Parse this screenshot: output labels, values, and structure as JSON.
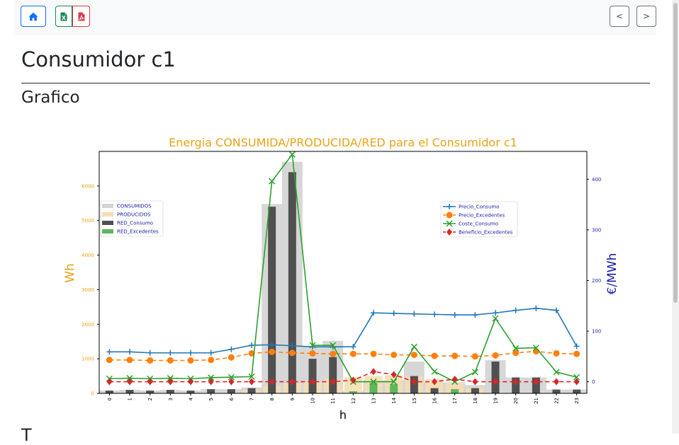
{
  "toolbar": {
    "home_icon": "home-icon",
    "excel_icon": "file-excel-icon",
    "pdf_icon": "file-pdf-icon",
    "prev_label": "<",
    "next_label": ">",
    "accent_home": "#0d6efd",
    "accent_excel": "#198754",
    "accent_pdf": "#dc3545"
  },
  "page": {
    "title": "Consumidor c1",
    "section": "Grafico",
    "next_heading_fragment": "T"
  },
  "chart_data": {
    "type": "bar",
    "title": "Energia CONSUMIDA/PRODUCIDA/RED para el Consumidor c1",
    "xlabel": "h",
    "ylabel": "Wh",
    "ylabel_right": "€/MWh",
    "categories": [
      "0",
      "1",
      "2",
      "3",
      "4",
      "5",
      "6",
      "7",
      "8",
      "9",
      "10",
      "11",
      "12",
      "13",
      "14",
      "15",
      "16",
      "17",
      "18",
      "19",
      "20",
      "21",
      "22",
      "23"
    ],
    "ylim": [
      0,
      7000
    ],
    "yticks": [
      0,
      1000,
      2000,
      3000,
      4000,
      5000,
      6000
    ],
    "ylim_right": [
      -23,
      455
    ],
    "yticks_right": [
      0,
      100,
      200,
      300,
      400
    ],
    "grid": false,
    "bar_series": [
      {
        "name": "CONSUMIDOS",
        "color": "#d3d3d3",
        "values": [
          80,
          100,
          80,
          100,
          80,
          120,
          120,
          170,
          5480,
          6700,
          1350,
          1520,
          60,
          380,
          380,
          920,
          320,
          320,
          240,
          960,
          460,
          460,
          110,
          110
        ]
      },
      {
        "name": "PRODUCIDOS",
        "color": "#f5deb3",
        "values": [
          0,
          0,
          0,
          0,
          0,
          0,
          20,
          90,
          220,
          300,
          350,
          420,
          470,
          500,
          520,
          500,
          420,
          300,
          150,
          40,
          0,
          0,
          0,
          0
        ]
      },
      {
        "name": "RED_Consumo",
        "color": "#505050",
        "values": [
          80,
          100,
          80,
          100,
          80,
          120,
          120,
          150,
          5400,
          6400,
          1000,
          1050,
          0,
          0,
          0,
          500,
          150,
          0,
          150,
          920,
          460,
          460,
          110,
          110
        ]
      },
      {
        "name": "RED_Excedentes",
        "color": "#5cb85c",
        "values": [
          0,
          0,
          0,
          0,
          0,
          0,
          0,
          0,
          0,
          0,
          0,
          0,
          60,
          300,
          270,
          0,
          0,
          120,
          0,
          0,
          0,
          0,
          0,
          0
        ]
      }
    ],
    "bar_legend_position": "upper-left",
    "line_series": [
      {
        "name": "Precio_Consumo",
        "color": "#1f77b4",
        "marker": "+",
        "values": [
          59,
          59,
          57,
          57,
          57,
          57,
          64,
          72,
          73,
          71,
          69,
          69,
          69,
          136,
          135,
          134,
          133,
          132,
          132,
          136,
          141,
          145,
          141,
          70
        ]
      },
      {
        "name": "Precio_Excedentes",
        "color": "#ff7f0e",
        "marker": "o",
        "values": [
          43,
          43,
          42,
          42,
          42,
          43,
          48,
          56,
          59,
          57,
          56,
          55,
          55,
          55,
          53,
          53,
          51,
          51,
          50,
          52,
          57,
          60,
          56,
          55
        ]
      },
      {
        "name": "Coste_Consumo",
        "color": "#2ca02c",
        "marker": "x",
        "values": [
          6,
          7,
          6,
          7,
          6,
          8,
          9,
          10,
          396,
          449,
          72,
          72,
          0,
          0,
          0,
          69,
          20,
          0,
          19,
          125,
          66,
          67,
          19,
          9
        ]
      },
      {
        "name": "Beneficio_Excedentes",
        "color": "#d62728",
        "marker": "D",
        "values": [
          0,
          0,
          0,
          0,
          0,
          0,
          0,
          0,
          0,
          0,
          0,
          0,
          3,
          20,
          14,
          0,
          0,
          5,
          0,
          0,
          0,
          0,
          0,
          0
        ]
      }
    ],
    "line_legend_position": "upper-center-right",
    "colors": {
      "title": "#e8a317",
      "left_axis": "#e8a317",
      "right_axis": "#1a1aa6"
    }
  }
}
